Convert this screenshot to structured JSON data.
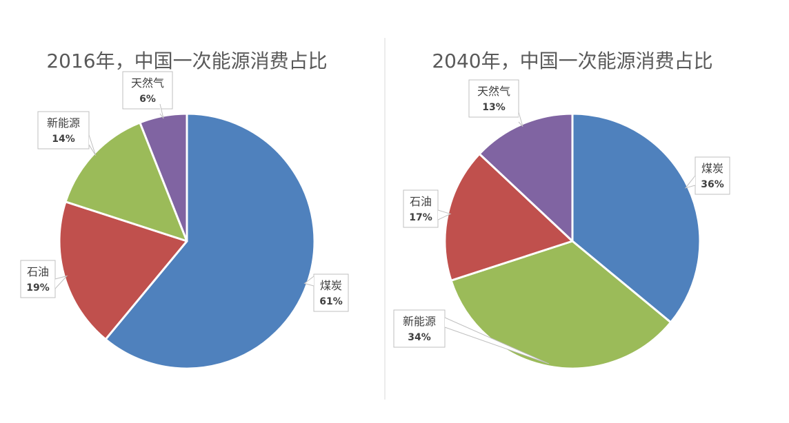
{
  "colors": {
    "coal": "#4F81BD",
    "oil": "#C0504D",
    "new_energy": "#9BBB59",
    "gas": "#8064A2"
  },
  "chart_data": [
    {
      "type": "pie",
      "title": "2016年，中国一次能源消费占比",
      "labels": [
        "煤炭",
        "石油",
        "新能源",
        "天然气"
      ],
      "values": [
        61,
        19,
        14,
        6
      ],
      "value_labels": [
        "61%",
        "19%",
        "14%",
        "6%"
      ],
      "colors": [
        "#4F81BD",
        "#C0504D",
        "#9BBB59",
        "#8064A2"
      ],
      "start_angle": 0,
      "direction": "clockwise",
      "legend": "none"
    },
    {
      "type": "pie",
      "title": "2040年，中国一次能源消费占比",
      "labels": [
        "煤炭",
        "新能源",
        "石油",
        "天然气"
      ],
      "values": [
        36,
        34,
        17,
        13
      ],
      "value_labels": [
        "36%",
        "34%",
        "17%",
        "13%"
      ],
      "colors": [
        "#4F81BD",
        "#9BBB59",
        "#C0504D",
        "#8064A2"
      ],
      "start_angle": 0,
      "direction": "clockwise",
      "legend": "none"
    }
  ]
}
